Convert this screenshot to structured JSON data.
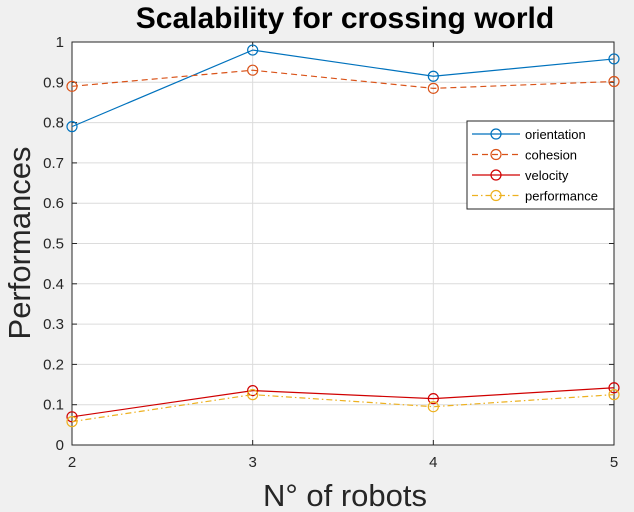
{
  "chart_data": {
    "type": "line",
    "title": "Scalability for crossing world",
    "xlabel": "N° of robots",
    "ylabel": "Performances",
    "x": [
      2,
      3,
      4,
      5
    ],
    "xlim": [
      2,
      5
    ],
    "ylim": [
      0,
      1
    ],
    "xticks": [
      "2",
      "3",
      "4",
      "5"
    ],
    "yticks": [
      "0",
      "0.1",
      "0.2",
      "0.3",
      "0.4",
      "0.5",
      "0.6",
      "0.7",
      "0.8",
      "0.9",
      "1"
    ],
    "grid": true,
    "legend_position": "top-right",
    "series": [
      {
        "name": "orientation",
        "values": [
          0.79,
          0.98,
          0.915,
          0.958
        ],
        "color": "#0072BD",
        "dash": "solid",
        "marker": "circle"
      },
      {
        "name": "cohesion",
        "values": [
          0.89,
          0.93,
          0.885,
          0.902
        ],
        "color": "#D95319",
        "dash": "dashed",
        "marker": "circle"
      },
      {
        "name": "velocity",
        "values": [
          0.07,
          0.135,
          0.115,
          0.142
        ],
        "color": "#D00000",
        "dash": "solid",
        "marker": "circle"
      },
      {
        "name": "performance",
        "values": [
          0.058,
          0.125,
          0.095,
          0.125
        ],
        "color": "#EDB120",
        "dash": "dashdot",
        "marker": "circle"
      }
    ]
  }
}
